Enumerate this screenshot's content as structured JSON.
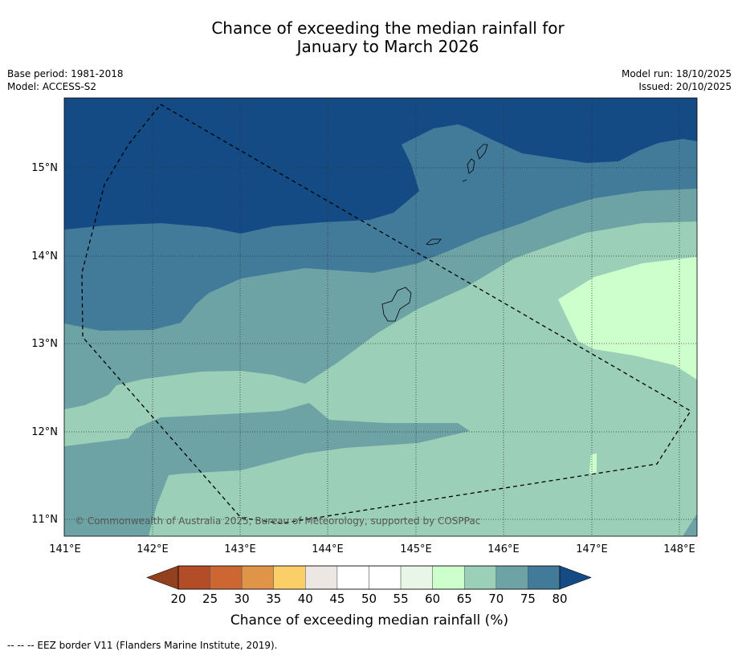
{
  "title": {
    "line1": "Chance of exceeding the median rainfall for",
    "line2": "January to March 2026"
  },
  "meta": {
    "base_period": "Base period: 1981-2018",
    "model": "Model: ACCESS-S2",
    "model_run": "Model run: 18/10/2025",
    "issued": "Issued: 20/10/2025"
  },
  "map": {
    "lon_range": [
      141,
      148.2
    ],
    "lat_range": [
      10.8,
      15.8
    ],
    "lon_labels": [
      "141°E",
      "142°E",
      "143°E",
      "144°E",
      "145°E",
      "146°E",
      "147°E",
      "148°E"
    ],
    "lat_labels": [
      "15°N",
      "14°N",
      "13°N",
      "12°N",
      "11°N"
    ],
    "copyright": "© Commonwealth of Australia 2025, Bureau of Meteorology, supported by COSPPac"
  },
  "colorbar": {
    "ticks": [
      "20",
      "25",
      "30",
      "35",
      "40",
      "45",
      "50",
      "55",
      "60",
      "65",
      "70",
      "75",
      "80"
    ],
    "under_color": "#93401f",
    "over_color": "#154b85",
    "colors": [
      "#b34d27",
      "#cc6633",
      "#e09448",
      "#fbcf68",
      "#ece7e2",
      "#ffffff",
      "#ffffff",
      "#e8f6e8",
      "#ccffcc",
      "#9ccfb8",
      "#6ea3a5",
      "#427a9a"
    ],
    "label": "Chance of exceeding median rainfall (%)"
  },
  "footnote": "--  --  -- EEZ border V11 (Flanders Marine Institute, 2019)."
}
